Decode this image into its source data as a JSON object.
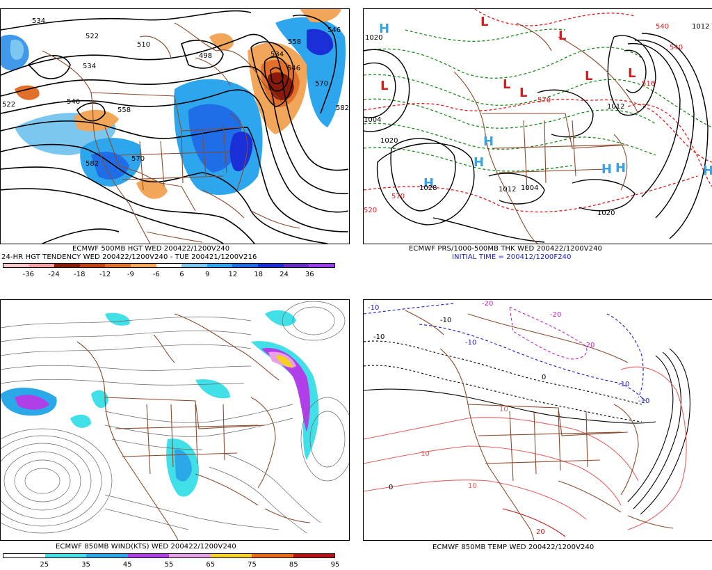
{
  "panels": {
    "tl": {
      "title1": "ECMWF 500MB HGT WED 200422/1200V240",
      "title2": "24-HR HGT TENDENCY WED 200422/1200V240 - TUE 200421/1200V216",
      "contour_labels": [
        "534",
        "522",
        "510",
        "498",
        "534",
        "546",
        "558",
        "570",
        "582",
        "522",
        "534",
        "546",
        "570",
        "582",
        "546",
        "558"
      ],
      "colorbar": {
        "ticks": [
          "-36",
          "-24",
          "-18",
          "-12",
          "-9",
          "-6",
          "6",
          "9",
          "12",
          "18",
          "24",
          "36"
        ],
        "colors": [
          "#f7c6c6",
          "#f2a2a2",
          "#8b1a0a",
          "#c24012",
          "#e0702a",
          "#f2a65a",
          "#ffffff",
          "#7cc7f0",
          "#2ea6ee",
          "#1f6ee8",
          "#1a2fd6",
          "#6a2ec8",
          "#9a3ff0"
        ]
      }
    },
    "tr": {
      "title1": "ECMWF PRS/1000-500MB THK WED 200422/1200V240",
      "title2": "INITIAL TIME = 200412/1200F240",
      "h_labels": [
        "H",
        "H",
        "H",
        "H",
        "H",
        "H",
        "H"
      ],
      "l_labels": [
        "L",
        "L",
        "L",
        "L",
        "L",
        "L",
        "L"
      ],
      "pressure_labels": [
        "1020",
        "1004",
        "1028",
        "1012",
        "1004",
        "1012",
        "1020",
        "1020",
        "1012"
      ],
      "thickness_labels": [
        "570",
        "540",
        "570",
        "516",
        "540",
        "520"
      ]
    },
    "bl": {
      "title1": "ECMWF 850MB WIND(KTS) WED 200422/1200V240",
      "colorbar": {
        "ticks": [
          "25",
          "35",
          "45",
          "55",
          "65",
          "75",
          "85",
          "95"
        ],
        "colors": [
          "#ffffff",
          "#41e0e8",
          "#2aa8e8",
          "#b03fe8",
          "#e8a0e8",
          "#f5d020",
          "#e86a18",
          "#b81010"
        ]
      }
    },
    "br": {
      "title1": "ECMWF 850MB TEMP WED 200422/1200V240",
      "temp_labels": [
        "-10",
        "-10",
        "-20",
        "-10",
        "-20",
        "-10",
        "0",
        "10",
        "-10",
        "-20",
        "-10",
        "10",
        "0",
        "10",
        "20"
      ]
    }
  },
  "colors": {
    "height_contour": "#000000",
    "map_border": "#8b4a2b",
    "tendency_warm": "#e07a2a",
    "tendency_cold": "#2e8ee8",
    "thickness_cold": "#1a8a1a",
    "thickness_warm": "#e01818",
    "high_marker": "#2ea6ee",
    "low_marker": "#e01818",
    "temp_warm": "#e66060",
    "temp_cold": "#1a1ac8",
    "temp_vcold": "#c020c0"
  },
  "icons": {
    "high_pressure": "letter-H",
    "low_pressure": "letter-L"
  }
}
